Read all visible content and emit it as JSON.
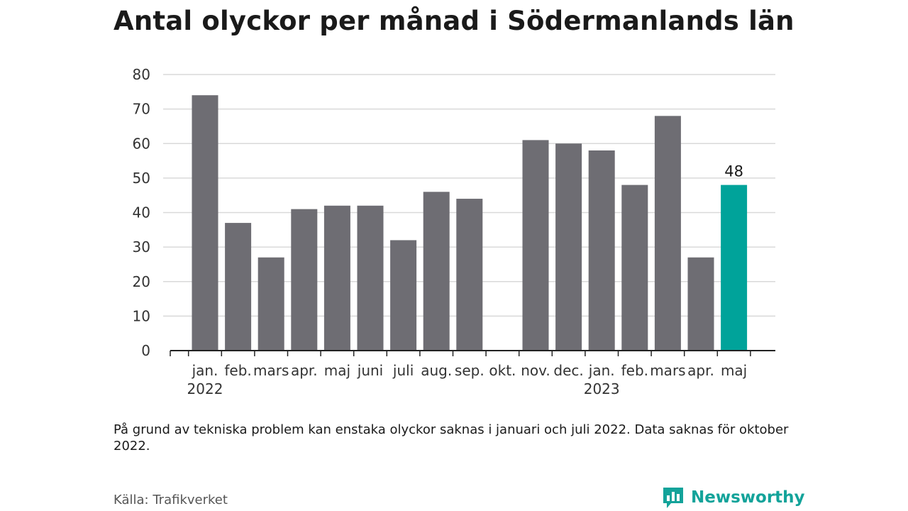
{
  "header": {
    "title": "Antal olyckor per månad i Södermanlands län"
  },
  "footer": {
    "note": "På grund av tekniska problem kan enstaka olyckor saknas i januari och juli 2022. Data saknas för oktober 2022.",
    "source": "Källa: Trafikverket",
    "brand": "Newsworthy"
  },
  "colors": {
    "bar": "#6e6d73",
    "highlight": "#00a39a",
    "grid": "#d9d9d9",
    "axis": "#222222",
    "brand": "#13a39a"
  },
  "icons": {
    "brand_logo": "bar-chart-speech-bubble-icon"
  },
  "chart_data": {
    "type": "bar",
    "title": "Antal olyckor per månad i Södermanlands län",
    "xlabel": "",
    "ylabel": "",
    "ylim": [
      0,
      80
    ],
    "yticks": [
      0,
      10,
      20,
      30,
      40,
      50,
      60,
      70,
      80
    ],
    "grid": true,
    "categories": [
      "jan.",
      "feb.",
      "mars",
      "apr.",
      "maj",
      "juni",
      "juli",
      "aug.",
      "sep.",
      "okt.",
      "nov.",
      "dec.",
      "jan.",
      "feb.",
      "mars",
      "apr.",
      "maj"
    ],
    "year_labels": [
      {
        "category_index": 0,
        "label": "2022"
      },
      {
        "category_index": 12,
        "label": "2023"
      }
    ],
    "values": [
      74,
      37,
      27,
      41,
      42,
      42,
      32,
      46,
      44,
      null,
      61,
      60,
      58,
      48,
      68,
      27,
      48
    ],
    "highlight_index": 16,
    "data_labels": [
      {
        "index": 16,
        "label": "48"
      }
    ]
  }
}
